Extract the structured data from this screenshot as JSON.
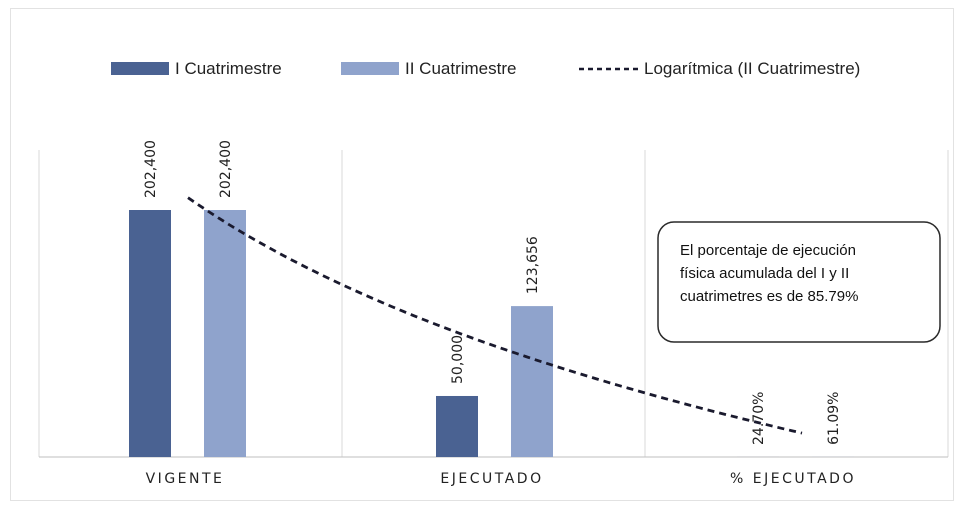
{
  "chart_data": {
    "type": "bar",
    "categories": [
      "VIGENTE",
      "EJECUTADO",
      "% EJECUTADO"
    ],
    "series": [
      {
        "name": "I Cuatrimestre",
        "values": [
          202400,
          50000,
          24.7
        ],
        "labels": [
          "202,400",
          "50,000",
          "24.70%"
        ],
        "color": "#4a6292"
      },
      {
        "name": "II Cuatrimestre",
        "values": [
          202400,
          123656,
          61.09
        ],
        "labels": [
          "202,400",
          "123,656",
          "61.09%"
        ],
        "color": "#8fa3cc"
      }
    ],
    "trendline": {
      "name": "Logarítmica (II Cuatrimestre)",
      "type": "logarithmic",
      "color": "#1a1a2e"
    },
    "ylim": [
      0,
      250000
    ],
    "grid": "vertical category separators only",
    "legend_position": "top",
    "annotation": [
      "El porcentaje de ejecución",
      "física acumulada del I y II",
      "cuatrimetres es de 85.79%"
    ]
  }
}
